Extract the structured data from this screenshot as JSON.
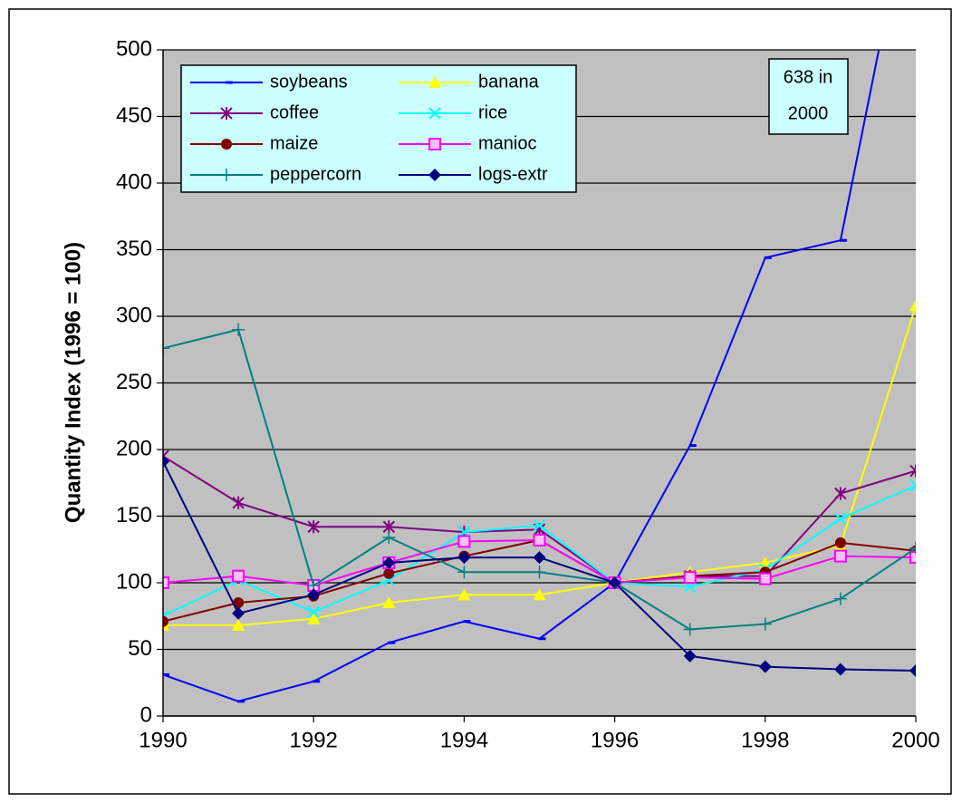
{
  "chart_data": {
    "type": "line",
    "y_label": "Quantity Index (1996 = 100)",
    "x": [
      1990,
      1991,
      1992,
      1993,
      1994,
      1995,
      1996,
      1997,
      1998,
      1999,
      2000
    ],
    "xlim": [
      1990,
      2000
    ],
    "xticks": [
      1990,
      1992,
      1994,
      1996,
      1998,
      2000
    ],
    "ylim": [
      0,
      500
    ],
    "yticks": [
      0,
      50,
      100,
      150,
      200,
      250,
      300,
      350,
      400,
      450,
      500
    ],
    "grid": true,
    "legend": "upper left",
    "annotation": [
      "638 in",
      "2000"
    ],
    "series": [
      {
        "name": "soybeans",
        "color": "#0000ff",
        "marker": "dash",
        "values": [
          31,
          11,
          26,
          55,
          71,
          58,
          100,
          203,
          344,
          357,
          638
        ]
      },
      {
        "name": "banana",
        "color": "#ffff00",
        "marker": "triangle",
        "values": [
          68,
          68,
          73,
          85,
          91,
          91,
          100,
          108,
          115,
          128,
          308
        ]
      },
      {
        "name": "coffee",
        "color": "#800080",
        "marker": "star",
        "values": [
          195,
          160,
          142,
          142,
          138,
          140,
          100,
          105,
          105,
          167,
          184
        ]
      },
      {
        "name": "rice",
        "color": "#00ffff",
        "marker": "x",
        "values": [
          75,
          102,
          78,
          102,
          138,
          143,
          100,
          97,
          110,
          148,
          173
        ]
      },
      {
        "name": "maize",
        "color": "#800000",
        "marker": "circle",
        "values": [
          71,
          85,
          90,
          107,
          120,
          132,
          100,
          105,
          108,
          130,
          124
        ]
      },
      {
        "name": "manioc",
        "color": "#ff00ff",
        "marker": "square",
        "values": [
          100,
          105,
          98,
          115,
          131,
          132,
          100,
          104,
          103,
          120,
          119
        ]
      },
      {
        "name": "peppercorn",
        "color": "#008080",
        "marker": "plus",
        "values": [
          276,
          290,
          98,
          134,
          108,
          108,
          100,
          65,
          69,
          88,
          126
        ]
      },
      {
        "name": "logs-extr",
        "color": "#000080",
        "marker": "diamond",
        "values": [
          191,
          77,
          91,
          115,
          119,
          119,
          100,
          45,
          37,
          35,
          34
        ]
      }
    ]
  }
}
